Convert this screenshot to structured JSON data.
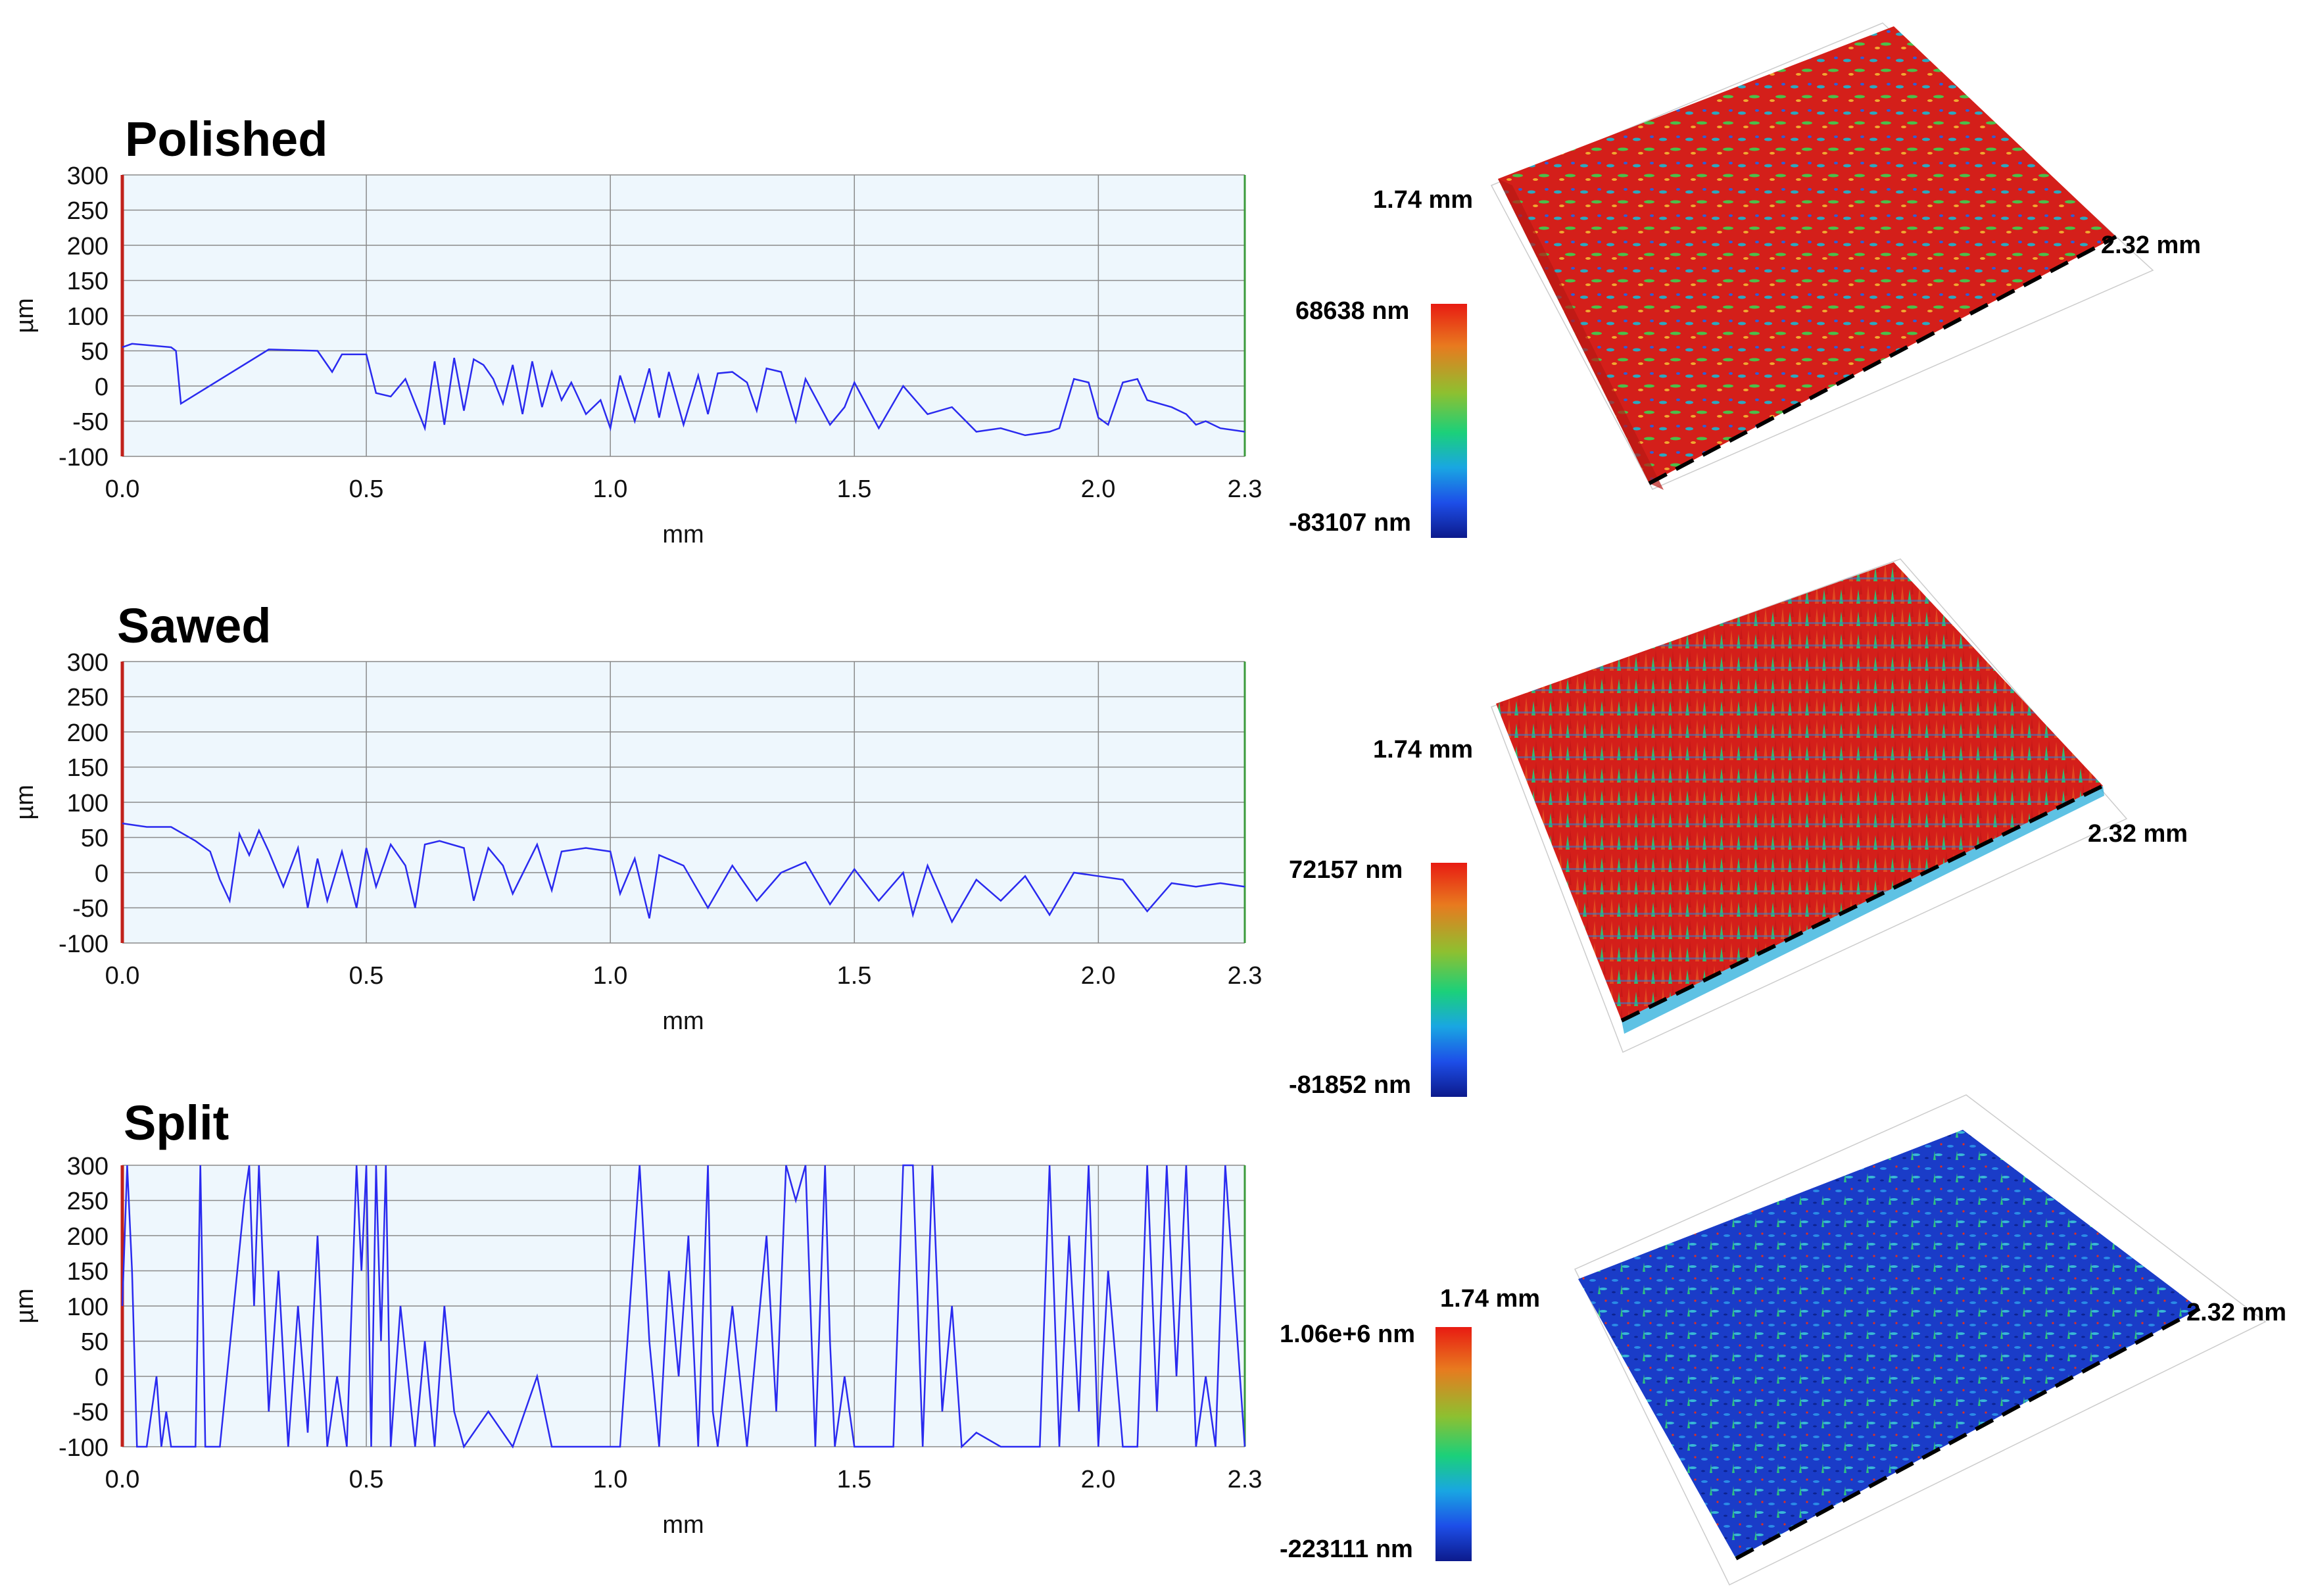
{
  "chart_data": [
    {
      "type": "line",
      "title": "Polished",
      "xlabel": "mm",
      "ylabel": "µm",
      "xlim": [
        0,
        2.3
      ],
      "ylim": [
        -100,
        300
      ],
      "x_ticks": [
        "0.0",
        "0.5",
        "1.0",
        "1.5",
        "2.0",
        "2.3"
      ],
      "y_ticks": [
        "300",
        "250",
        "200",
        "150",
        "100",
        "50",
        "0",
        "-50",
        "-100"
      ],
      "series": [
        {
          "name": "profile",
          "x": [
            0.0,
            0.02,
            0.1,
            0.11,
            0.12,
            0.3,
            0.4,
            0.43,
            0.45,
            0.5,
            0.52,
            0.55,
            0.58,
            0.6,
            0.62,
            0.64,
            0.66,
            0.68,
            0.7,
            0.72,
            0.74,
            0.76,
            0.78,
            0.8,
            0.82,
            0.84,
            0.86,
            0.88,
            0.9,
            0.92,
            0.95,
            0.98,
            1.0,
            1.02,
            1.05,
            1.08,
            1.1,
            1.12,
            1.15,
            1.18,
            1.2,
            1.22,
            1.25,
            1.28,
            1.3,
            1.32,
            1.35,
            1.38,
            1.4,
            1.45,
            1.48,
            1.5,
            1.55,
            1.6,
            1.65,
            1.7,
            1.75,
            1.8,
            1.85,
            1.9,
            1.92,
            1.95,
            1.98,
            2.0,
            2.02,
            2.05,
            2.08,
            2.1,
            2.15,
            2.18,
            2.2,
            2.22,
            2.25,
            2.3
          ],
          "y": [
            55,
            60,
            55,
            50,
            -25,
            52,
            50,
            20,
            45,
            45,
            -10,
            -15,
            10,
            -25,
            -60,
            35,
            -55,
            40,
            -35,
            38,
            30,
            10,
            -25,
            30,
            -40,
            35,
            -30,
            20,
            -20,
            5,
            -40,
            -20,
            -60,
            15,
            -50,
            25,
            -45,
            20,
            -55,
            15,
            -40,
            18,
            20,
            5,
            -35,
            25,
            20,
            -50,
            10,
            -55,
            -30,
            5,
            -60,
            0,
            -40,
            -30,
            -65,
            -60,
            -70,
            -65,
            -60,
            10,
            5,
            -45,
            -55,
            5,
            10,
            -20,
            -30,
            -40,
            -55,
            -50,
            -60,
            -65
          ]
        }
      ]
    },
    {
      "type": "line",
      "title": "Sawed",
      "xlabel": "mm",
      "ylabel": "µm",
      "xlim": [
        0,
        2.3
      ],
      "ylim": [
        -100,
        300
      ],
      "x_ticks": [
        "0.0",
        "0.5",
        "1.0",
        "1.5",
        "2.0",
        "2.3"
      ],
      "y_ticks": [
        "300",
        "250",
        "200",
        "150",
        "100",
        "50",
        "0",
        "-50",
        "-100"
      ],
      "series": [
        {
          "name": "profile",
          "x": [
            0.0,
            0.05,
            0.1,
            0.15,
            0.18,
            0.2,
            0.22,
            0.24,
            0.26,
            0.28,
            0.3,
            0.33,
            0.36,
            0.38,
            0.4,
            0.42,
            0.45,
            0.48,
            0.5,
            0.52,
            0.55,
            0.58,
            0.6,
            0.62,
            0.65,
            0.7,
            0.72,
            0.75,
            0.78,
            0.8,
            0.85,
            0.88,
            0.9,
            0.95,
            1.0,
            1.02,
            1.05,
            1.08,
            1.1,
            1.15,
            1.2,
            1.25,
            1.3,
            1.35,
            1.4,
            1.45,
            1.5,
            1.55,
            1.6,
            1.62,
            1.65,
            1.7,
            1.75,
            1.8,
            1.85,
            1.9,
            1.95,
            2.0,
            2.05,
            2.1,
            2.15,
            2.2,
            2.25,
            2.3
          ],
          "y": [
            70,
            65,
            65,
            45,
            30,
            -10,
            -40,
            55,
            25,
            60,
            30,
            -20,
            35,
            -50,
            20,
            -40,
            30,
            -50,
            35,
            -20,
            40,
            10,
            -50,
            40,
            45,
            35,
            -40,
            35,
            10,
            -30,
            40,
            -25,
            30,
            35,
            30,
            -30,
            20,
            -65,
            25,
            10,
            -50,
            10,
            -40,
            0,
            15,
            -45,
            5,
            -40,
            0,
            -60,
            10,
            -70,
            -10,
            -40,
            -5,
            -60,
            0,
            -5,
            -10,
            -55,
            -15,
            -20,
            -15,
            -20
          ]
        }
      ]
    },
    {
      "type": "line",
      "title": "Split",
      "xlabel": "mm",
      "ylabel": "µm",
      "xlim": [
        0,
        2.3
      ],
      "ylim": [
        -100,
        300
      ],
      "x_ticks": [
        "0.0",
        "0.5",
        "1.0",
        "1.5",
        "2.0",
        "2.3"
      ],
      "y_ticks": [
        "300",
        "250",
        "200",
        "150",
        "100",
        "50",
        "0",
        "-50",
        "-100"
      ],
      "series": [
        {
          "name": "profile",
          "x": [
            0.0,
            0.01,
            0.02,
            0.03,
            0.05,
            0.07,
            0.08,
            0.09,
            0.1,
            0.12,
            0.15,
            0.16,
            0.17,
            0.2,
            0.25,
            0.26,
            0.27,
            0.28,
            0.3,
            0.32,
            0.34,
            0.36,
            0.38,
            0.4,
            0.42,
            0.44,
            0.46,
            0.48,
            0.49,
            0.5,
            0.51,
            0.52,
            0.53,
            0.54,
            0.55,
            0.57,
            0.6,
            0.62,
            0.64,
            0.66,
            0.68,
            0.7,
            0.75,
            0.8,
            0.85,
            0.88,
            0.9,
            0.95,
            1.0,
            1.02,
            1.04,
            1.06,
            1.08,
            1.1,
            1.12,
            1.14,
            1.16,
            1.18,
            1.2,
            1.21,
            1.22,
            1.25,
            1.28,
            1.3,
            1.32,
            1.34,
            1.36,
            1.38,
            1.4,
            1.42,
            1.44,
            1.45,
            1.46,
            1.48,
            1.5,
            1.55,
            1.58,
            1.6,
            1.62,
            1.64,
            1.66,
            1.68,
            1.7,
            1.72,
            1.75,
            1.8,
            1.85,
            1.88,
            1.9,
            1.92,
            1.94,
            1.96,
            1.98,
            2.0,
            2.02,
            2.05,
            2.08,
            2.1,
            2.12,
            2.14,
            2.16,
            2.18,
            2.2,
            2.22,
            2.24,
            2.26,
            2.28,
            2.3
          ],
          "y": [
            100,
            300,
            150,
            -100,
            -100,
            0,
            -100,
            -50,
            -100,
            -100,
            -100,
            300,
            -100,
            -100,
            250,
            300,
            100,
            300,
            -50,
            150,
            -100,
            100,
            -80,
            200,
            -100,
            0,
            -100,
            300,
            150,
            300,
            -100,
            300,
            50,
            300,
            -100,
            100,
            -100,
            50,
            -100,
            100,
            -50,
            -100,
            -50,
            -100,
            0,
            -100,
            -100,
            -100,
            -100,
            -100,
            100,
            300,
            50,
            -100,
            150,
            0,
            200,
            -100,
            300,
            -50,
            -100,
            100,
            -100,
            50,
            200,
            -50,
            300,
            250,
            300,
            -100,
            300,
            50,
            -100,
            0,
            -100,
            -100,
            -100,
            300,
            300,
            -100,
            300,
            -50,
            100,
            -100,
            -80,
            -100,
            -100,
            -100,
            300,
            -100,
            200,
            -50,
            300,
            -100,
            150,
            -100,
            -100,
            300,
            -50,
            300,
            0,
            300,
            -100,
            0,
            -100,
            300,
            100,
            -100
          ]
        }
      ]
    }
  ],
  "surface_views": [
    {
      "name": "Polished 3D",
      "width_label": "1.74 mm",
      "length_label": "2.32 mm",
      "colorbar_max": "68638 nm",
      "colorbar_min": "-83107 nm",
      "dominant_color": "#d41f1a"
    },
    {
      "name": "Sawed 3D",
      "width_label": "1.74 mm",
      "length_label": "2.32 mm",
      "colorbar_max": "72157 nm",
      "colorbar_min": "-81852 nm",
      "dominant_color": "#d41f1a"
    },
    {
      "name": "Split 3D",
      "width_label": "1.74 mm",
      "length_label": "2.32 mm",
      "colorbar_max": "1.06e+6 nm",
      "colorbar_min": "-223111 nm",
      "dominant_color": "#1a3cc8"
    }
  ],
  "colors": {
    "line": "#2a2aef",
    "plot_bg": "#eef7fd",
    "grid": "#8a8a8a",
    "left_axis": "#c0221b",
    "right_axis": "#3b9a3b",
    "red_surface": "#d41f1a",
    "blue_surface": "#1a3cc8"
  }
}
